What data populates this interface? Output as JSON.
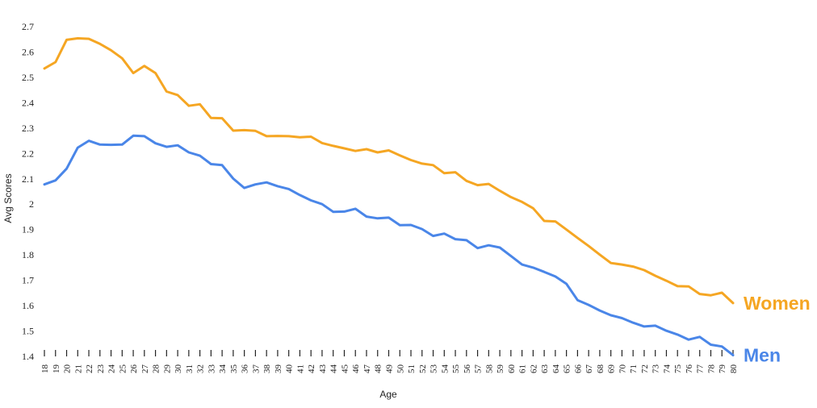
{
  "chart_data": {
    "type": "line",
    "title": "",
    "xlabel": "Age",
    "ylabel": "Avg Scores",
    "x": [
      18,
      19,
      20,
      21,
      22,
      23,
      24,
      25,
      26,
      27,
      28,
      29,
      30,
      31,
      32,
      33,
      34,
      35,
      36,
      37,
      38,
      39,
      40,
      41,
      42,
      43,
      44,
      45,
      46,
      47,
      48,
      49,
      50,
      51,
      52,
      53,
      54,
      55,
      56,
      57,
      58,
      59,
      60,
      61,
      62,
      63,
      64,
      65,
      66,
      67,
      68,
      69,
      70,
      71,
      72,
      73,
      74,
      75,
      76,
      77,
      78,
      79,
      80
    ],
    "ylim": [
      1.4,
      2.7
    ],
    "yticks": [
      "1.4",
      "1.5",
      "1.6",
      "1.7",
      "1.8",
      "1.9",
      "2",
      "2.1",
      "2.2",
      "2.3",
      "2.4",
      "2.5",
      "2.6",
      "2.7"
    ],
    "grid": false,
    "legend": "direct labels at line ends (right)",
    "series": [
      {
        "name": "Women",
        "color": "#F5A623",
        "values": [
          2.535,
          2.56,
          2.648,
          2.654,
          2.652,
          2.632,
          2.607,
          2.575,
          2.517,
          2.545,
          2.517,
          2.444,
          2.43,
          2.388,
          2.394,
          2.34,
          2.339,
          2.29,
          2.292,
          2.289,
          2.268,
          2.269,
          2.268,
          2.264,
          2.266,
          2.241,
          2.23,
          2.22,
          2.21,
          2.217,
          2.204,
          2.212,
          2.192,
          2.174,
          2.16,
          2.154,
          2.122,
          2.126,
          2.092,
          2.075,
          2.08,
          2.053,
          2.028,
          2.009,
          1.984,
          1.934,
          1.932,
          1.9,
          1.867,
          1.835,
          1.801,
          1.768,
          1.762,
          1.754,
          1.74,
          1.718,
          1.698,
          1.677,
          1.676,
          1.646,
          1.641,
          1.651,
          1.61
        ]
      },
      {
        "name": "Men",
        "color": "#4A86E8",
        "values": [
          2.078,
          2.094,
          2.14,
          2.223,
          2.25,
          2.235,
          2.234,
          2.235,
          2.27,
          2.268,
          2.24,
          2.226,
          2.232,
          2.204,
          2.191,
          2.158,
          2.154,
          2.101,
          2.064,
          2.078,
          2.086,
          2.071,
          2.06,
          2.036,
          2.015,
          2.0,
          1.97,
          1.971,
          1.982,
          1.951,
          1.944,
          1.947,
          1.917,
          1.918,
          1.902,
          1.875,
          1.884,
          1.862,
          1.858,
          1.827,
          1.838,
          1.829,
          1.796,
          1.762,
          1.75,
          1.733,
          1.715,
          1.686,
          1.622,
          1.603,
          1.581,
          1.562,
          1.551,
          1.533,
          1.518,
          1.521,
          1.501,
          1.486,
          1.466,
          1.477,
          1.446,
          1.439,
          1.405
        ]
      }
    ]
  }
}
